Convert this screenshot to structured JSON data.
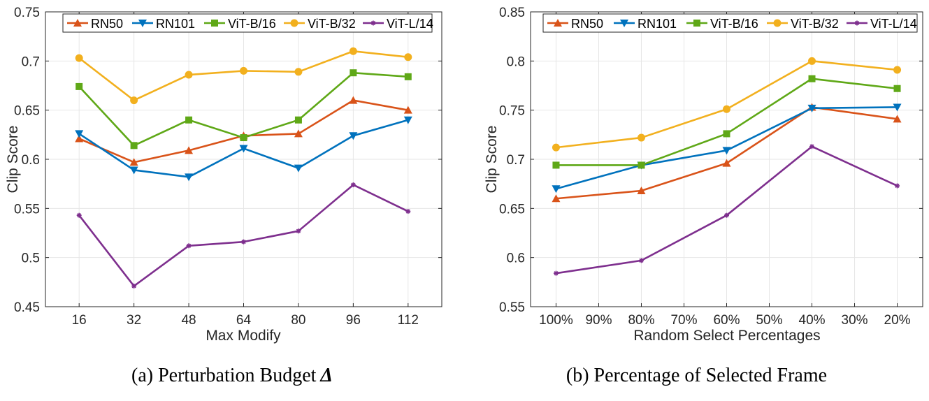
{
  "chart_data": [
    {
      "type": "line",
      "title": "",
      "xlabel": "Max Modify",
      "ylabel": "Clip Score",
      "categories": [
        "16",
        "32",
        "48",
        "64",
        "80",
        "96",
        "112"
      ],
      "ylim": [
        0.45,
        0.75
      ],
      "yticks": [
        "0.45",
        "0.5",
        "0.55",
        "0.6",
        "0.65",
        "0.7",
        "0.75"
      ],
      "grid": true,
      "legend": "top",
      "series": [
        {
          "name": "RN50",
          "values": [
            0.621,
            0.597,
            0.609,
            0.624,
            0.626,
            0.66,
            0.65
          ]
        },
        {
          "name": "RN101",
          "values": [
            0.626,
            0.589,
            0.582,
            0.611,
            0.591,
            0.624,
            0.64
          ]
        },
        {
          "name": "ViT-B/16",
          "values": [
            0.674,
            0.614,
            0.64,
            0.622,
            0.64,
            0.688,
            0.684
          ]
        },
        {
          "name": "ViT-B/32",
          "values": [
            0.703,
            0.66,
            0.686,
            0.69,
            0.689,
            0.71,
            0.704
          ]
        },
        {
          "name": "ViT-L/14",
          "values": [
            0.543,
            0.471,
            0.512,
            0.516,
            0.527,
            0.574,
            0.547
          ]
        }
      ]
    },
    {
      "type": "line",
      "title": "",
      "xlabel": "Random Select Percentages",
      "ylabel": "Clip Score",
      "categories": [
        "100%",
        "90%",
        "80%",
        "70%",
        "60%",
        "50%",
        "40%",
        "30%",
        "20%"
      ],
      "ylim": [
        0.55,
        0.85
      ],
      "yticks": [
        "0.55",
        "0.6",
        "0.65",
        "0.7",
        "0.75",
        "0.8",
        "0.85"
      ],
      "grid": true,
      "legend": "top",
      "series": [
        {
          "name": "RN50",
          "x": [
            "100%",
            "80%",
            "60%",
            "40%",
            "20%"
          ],
          "values": [
            0.66,
            0.668,
            0.696,
            0.753,
            0.741
          ]
        },
        {
          "name": "RN101",
          "x": [
            "100%",
            "80%",
            "60%",
            "40%",
            "20%"
          ],
          "values": [
            0.67,
            0.694,
            0.709,
            0.752,
            0.753
          ]
        },
        {
          "name": "ViT-B/16",
          "x": [
            "100%",
            "80%",
            "60%",
            "40%",
            "20%"
          ],
          "values": [
            0.694,
            0.694,
            0.726,
            0.782,
            0.772
          ]
        },
        {
          "name": "ViT-B/32",
          "x": [
            "100%",
            "80%",
            "60%",
            "40%",
            "20%"
          ],
          "values": [
            0.712,
            0.722,
            0.751,
            0.8,
            0.791
          ]
        },
        {
          "name": "ViT-L/14",
          "x": [
            "100%",
            "80%",
            "60%",
            "40%",
            "20%"
          ],
          "values": [
            0.584,
            0.597,
            0.643,
            0.713,
            0.673
          ]
        }
      ]
    }
  ],
  "series_style": [
    {
      "color": "#D95319",
      "marker": "triangle-up"
    },
    {
      "color": "#0072BD",
      "marker": "triangle-down"
    },
    {
      "color": "#5FA817",
      "marker": "square"
    },
    {
      "color": "#F2B01E",
      "marker": "circle"
    },
    {
      "color": "#7E2F8E",
      "marker": "asterisk"
    }
  ],
  "captions": {
    "a_text": "(a) Perturbation Budget",
    "a_symbol": "Δ",
    "b_text": "(b) Percentage of Selected Frame"
  }
}
